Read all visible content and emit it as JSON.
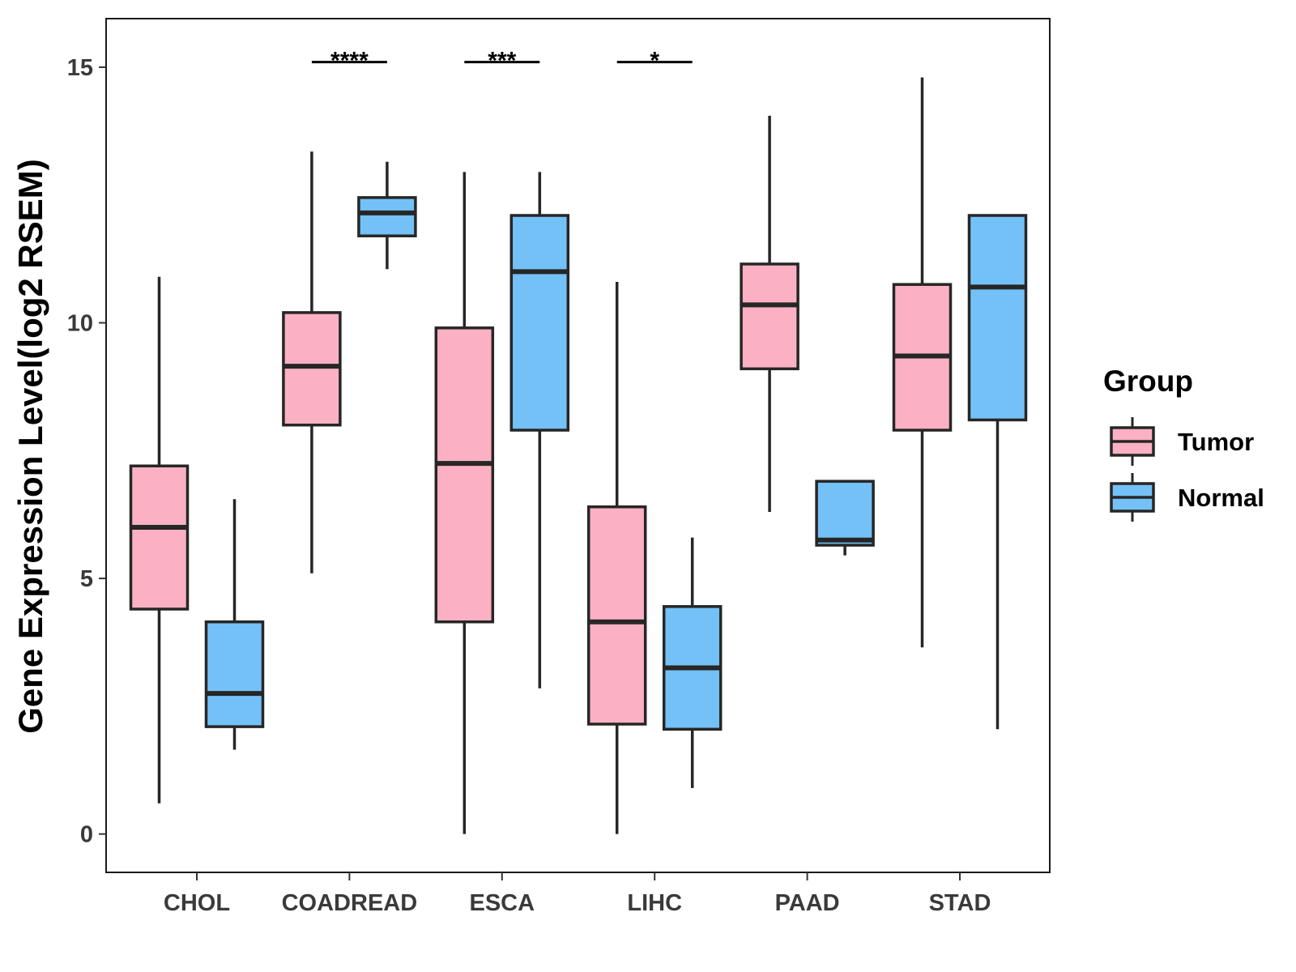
{
  "chart_data": {
    "type": "boxplot",
    "title": "",
    "xlabel": "",
    "ylabel": "Gene Expression Level(log2 RSEM)",
    "ylim": [
      -0.75,
      15.95
    ],
    "yticks": [
      0,
      5,
      10,
      15
    ],
    "ytick_labels": [
      "0",
      "5",
      "10",
      "15"
    ],
    "categories": [
      "CHOL",
      "COADREAD",
      "ESCA",
      "LIHC",
      "PAAD",
      "STAD"
    ],
    "legend": {
      "title": "Group",
      "position": "right",
      "entries": [
        {
          "name": "Tumor",
          "color": "#FBB1C3"
        },
        {
          "name": "Normal",
          "color": "#74C1F8"
        }
      ]
    },
    "series": [
      {
        "name": "Tumor",
        "color": "#FBB1C3",
        "boxes": [
          {
            "min": 0.6,
            "q1": 4.4,
            "median": 6.0,
            "q3": 7.2,
            "max": 10.9
          },
          {
            "min": 5.1,
            "q1": 8.0,
            "median": 9.15,
            "q3": 10.2,
            "max": 13.35
          },
          {
            "min": 0.0,
            "q1": 4.15,
            "median": 7.25,
            "q3": 9.9,
            "max": 12.95
          },
          {
            "min": 0.0,
            "q1": 2.15,
            "median": 4.15,
            "q3": 6.4,
            "max": 10.8
          },
          {
            "min": 6.3,
            "q1": 9.1,
            "median": 10.35,
            "q3": 11.15,
            "max": 14.05
          },
          {
            "min": 3.65,
            "q1": 7.9,
            "median": 9.35,
            "q3": 10.75,
            "max": 14.8
          }
        ]
      },
      {
        "name": "Normal",
        "color": "#74C1F8",
        "boxes": [
          {
            "min": 1.65,
            "q1": 2.1,
            "median": 2.75,
            "q3": 4.15,
            "max": 6.55
          },
          {
            "min": 11.05,
            "q1": 11.7,
            "median": 12.15,
            "q3": 12.45,
            "max": 13.15
          },
          {
            "min": 2.85,
            "q1": 7.9,
            "median": 11.0,
            "q3": 12.1,
            "max": 12.95
          },
          {
            "min": 0.9,
            "q1": 2.05,
            "median": 3.25,
            "q3": 4.45,
            "max": 5.8
          },
          {
            "min": 5.45,
            "q1": 5.65,
            "median": 5.75,
            "q3": 6.9,
            "max": 6.9
          },
          {
            "min": 2.05,
            "q1": 8.1,
            "median": 10.7,
            "q3": 12.1,
            "max": 12.1
          }
        ]
      }
    ],
    "significance": [
      {
        "category": "COADREAD",
        "label": "****",
        "y": 15.1
      },
      {
        "category": "ESCA",
        "label": "***",
        "y": 15.1
      },
      {
        "category": "LIHC",
        "label": "*",
        "y": 15.1
      }
    ]
  }
}
